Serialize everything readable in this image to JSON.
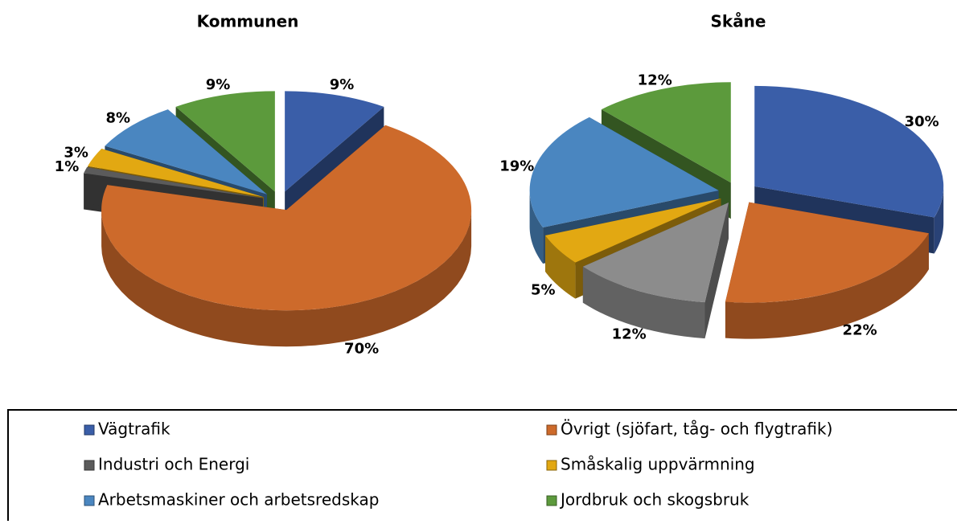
{
  "chart_data": [
    {
      "type": "pie",
      "title": "Kommunen",
      "categories": [
        "Vägtrafik",
        "Övrigt (sjöfart, tåg- och flygtrafik)",
        "Industri och Energi",
        "Småskalig uppvärmning",
        "Arbetsmaskiner och arbetsredskap",
        "Jordbruk och skogsbruk"
      ],
      "values": [
        9,
        70,
        1,
        3,
        8,
        9
      ],
      "value_labels": [
        "9%",
        "70%",
        "1%",
        "3%",
        "8%",
        "9%"
      ],
      "colors": [
        "#3a5ea8",
        "#cd6a2b",
        "#5b5b5b",
        "#e2a812",
        "#4a86c0",
        "#5c9a3c"
      ]
    },
    {
      "type": "pie",
      "title": "Skåne",
      "categories": [
        "Vägtrafik",
        "Övrigt (sjöfart, tåg- och flygtrafik)",
        "Industri och Energi",
        "Småskalig uppvärmning",
        "Arbetsmaskiner och arbetsredskap",
        "Jordbruk och skogsbruk"
      ],
      "values": [
        30,
        22,
        12,
        5,
        19,
        12
      ],
      "value_labels": [
        "30%",
        "22%",
        "12%",
        "5%",
        "19%",
        "12%"
      ],
      "colors": [
        "#3a5ea8",
        "#cd6a2b",
        "#8c8c8c",
        "#e2a812",
        "#4a86c0",
        "#5c9a3c"
      ]
    }
  ]
}
